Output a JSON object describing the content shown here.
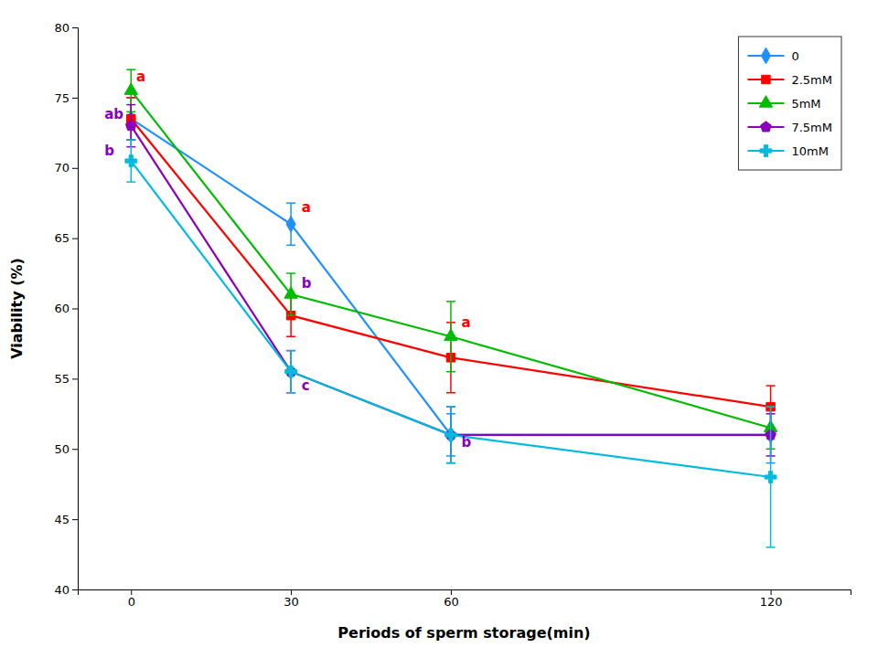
{
  "chart_data": {
    "type": "line",
    "x": [
      0,
      30,
      60,
      120
    ],
    "series": [
      {
        "name": "0",
        "color": "#1E90FF",
        "marker": "diamond",
        "values": [
          73.5,
          66.0,
          51.0,
          51.0
        ],
        "errors": [
          1.5,
          1.5,
          1.5,
          2.0
        ]
      },
      {
        "name": "2.5mM",
        "color": "#FF0000",
        "marker": "square",
        "values": [
          73.5,
          59.5,
          56.5,
          53.0
        ],
        "errors": [
          1.5,
          1.5,
          2.5,
          1.5
        ]
      },
      {
        "name": "5mM",
        "color": "#00BB00",
        "marker": "triangle",
        "values": [
          75.5,
          61.0,
          58.0,
          51.5
        ],
        "errors": [
          1.5,
          1.5,
          2.5,
          1.5
        ]
      },
      {
        "name": "7.5mM",
        "color": "#8B00BB",
        "marker": "pentagon",
        "values": [
          73.0,
          55.5,
          51.0,
          51.0
        ],
        "errors": [
          1.5,
          1.5,
          2.0,
          1.5
        ]
      },
      {
        "name": "10mM",
        "color": "#00BBDD",
        "marker": "plus",
        "values": [
          70.5,
          55.5,
          51.0,
          48.0
        ],
        "errors": [
          1.5,
          1.5,
          2.0,
          5.0
        ]
      }
    ],
    "annotations": [
      {
        "text": "ab",
        "x": -5,
        "y": 73.8,
        "color": "#8B00BB"
      },
      {
        "text": "b",
        "x": -5,
        "y": 71.2,
        "color": "#8B00BB"
      },
      {
        "text": "a",
        "x": 1,
        "y": 76.5,
        "color": "#FF0000"
      },
      {
        "text": "a",
        "x": 32,
        "y": 67.2,
        "color": "#FF0000"
      },
      {
        "text": "b",
        "x": 32,
        "y": 61.8,
        "color": "#8B00BB"
      },
      {
        "text": "c",
        "x": 32,
        "y": 54.5,
        "color": "#8B00BB"
      },
      {
        "text": "a",
        "x": 62,
        "y": 59.0,
        "color": "#FF0000"
      },
      {
        "text": "b",
        "x": 62,
        "y": 50.5,
        "color": "#8B00BB"
      }
    ],
    "xlabel": "Periods of sperm storage(min)",
    "ylabel": "Viability (%)",
    "xlim": [
      -10,
      135
    ],
    "ylim": [
      40,
      80
    ],
    "xticks": [
      0,
      30,
      60,
      120
    ],
    "yticks": [
      40,
      45,
      50,
      55,
      60,
      65,
      70,
      75,
      80
    ],
    "grid": false,
    "legend": "upper right"
  }
}
